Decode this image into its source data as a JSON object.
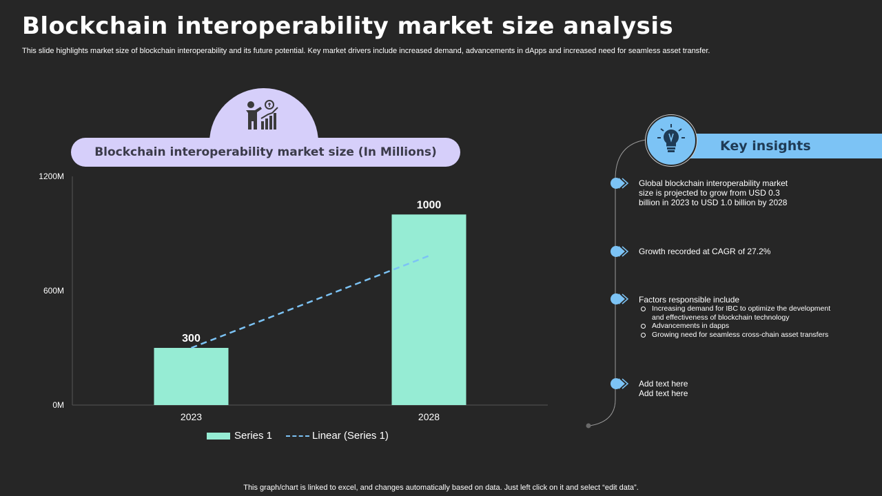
{
  "header": {
    "title": "Blockchain interoperability market size analysis",
    "subtitle": "This slide highlights market size of blockchain interoperability and its future potential. Key market drivers include increased demand, advancements in dApps and increased need for seamless asset transfer."
  },
  "chart_panel": {
    "heading": "Blockchain interoperability market size (In Millions)",
    "icon": "presenter-growth-chart-icon"
  },
  "chart_data": {
    "type": "bar",
    "categories": [
      "2023",
      "2028"
    ],
    "series": [
      {
        "name": "Series 1",
        "values": [
          300,
          1000
        ],
        "color": "#96ecd4"
      }
    ],
    "trendline": {
      "name": "Linear (Series 1)",
      "type": "linear",
      "color": "#7cc3f5",
      "style": "dashed"
    },
    "data_labels": [
      "300",
      "1000"
    ],
    "ylim": [
      0,
      1200
    ],
    "yticks": [
      0,
      600,
      1200
    ],
    "ytick_labels": [
      "0M",
      "600M",
      "1200M"
    ],
    "title": "Blockchain interoperability market size (In Millions)",
    "xlabel": "",
    "ylabel": "",
    "legend_position": "bottom",
    "grid": false
  },
  "legend": {
    "series_label": "Series 1",
    "trend_label": "Linear (Series 1)"
  },
  "key_insights": {
    "title": "Key insights",
    "icon": "lightbulb-icon",
    "items": [
      {
        "text": "Global blockchain interoperability market size is projected to grow from USD 0.3 billion in 2023 to USD 1.0 billion by 2028"
      },
      {
        "text": "Growth recorded at CAGR of 27.2%"
      },
      {
        "text": "Factors responsible include",
        "subitems": [
          "Increasing demand  for IBC  to optimize the development and effectiveness of blockchain technology",
          "Advancements in dapps",
          "Growing need for seamless cross-chain asset transfers"
        ]
      },
      {
        "text": "Add text here",
        "text2": "Add text here"
      }
    ]
  },
  "footer": "This graph/chart is linked to excel,  and changes automatically based on data. Just left click on it and select “edit data”."
}
